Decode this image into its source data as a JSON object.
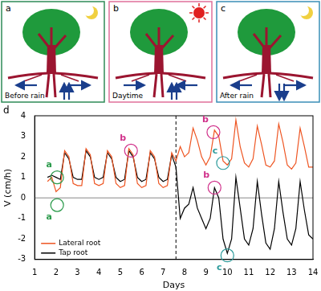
{
  "panels": [
    {
      "label": "a",
      "caption": "Before rain",
      "border_color": "#2e8b57"
    },
    {
      "label": "b",
      "caption": "Daytime",
      "border_color": "#e0709a"
    },
    {
      "label": "c",
      "caption": "After rain",
      "border_color": "#3a8fb7"
    }
  ],
  "chart_data": {
    "type": "line",
    "panel_label": "d",
    "x_label": "Days",
    "y_label": "V (cm/h)",
    "x": [
      1.6,
      1.8,
      2.0,
      2.2,
      2.4,
      2.6,
      2.8,
      3.0,
      3.2,
      3.4,
      3.6,
      3.8,
      4.0,
      4.2,
      4.4,
      4.6,
      4.8,
      5.0,
      5.2,
      5.4,
      5.6,
      5.8,
      6.0,
      6.2,
      6.4,
      6.6,
      6.8,
      7.0,
      7.2,
      7.4,
      7.6,
      7.8,
      8.0,
      8.2,
      8.4,
      8.6,
      8.8,
      9.0,
      9.2,
      9.4,
      9.6,
      9.8,
      10.0,
      10.2,
      10.4,
      10.6,
      10.8,
      11.0,
      11.2,
      11.4,
      11.6,
      11.8,
      12.0,
      12.2,
      12.4,
      12.6,
      12.8,
      13.0,
      13.2,
      13.4,
      13.6,
      13.8,
      14.0
    ],
    "series": [
      {
        "name": "Lateral root",
        "color": "#ee5522",
        "values": [
          0.8,
          1.0,
          0.3,
          0.5,
          2.3,
          2.0,
          0.7,
          0.6,
          0.6,
          2.4,
          2.1,
          0.7,
          0.6,
          0.7,
          2.3,
          2.0,
          0.7,
          0.5,
          0.6,
          2.4,
          2.1,
          0.7,
          0.5,
          0.6,
          2.3,
          2.0,
          0.7,
          0.5,
          0.6,
          2.2,
          1.8,
          2.5,
          2.0,
          2.2,
          3.4,
          2.8,
          2.0,
          1.6,
          2.0,
          3.3,
          3.0,
          1.8,
          1.6,
          1.9,
          3.8,
          2.5,
          1.7,
          1.5,
          1.9,
          3.5,
          2.6,
          1.6,
          1.5,
          1.8,
          3.6,
          2.7,
          1.6,
          1.4,
          1.7,
          3.4,
          2.5,
          1.5,
          1.5
        ]
      },
      {
        "name": "Tap root",
        "color": "#000000",
        "values": [
          1.0,
          1.1,
          1.0,
          0.9,
          2.2,
          1.9,
          1.0,
          0.9,
          0.9,
          2.3,
          2.0,
          1.0,
          0.9,
          1.0,
          2.2,
          1.9,
          1.0,
          0.8,
          0.9,
          2.3,
          2.0,
          1.0,
          0.8,
          0.9,
          2.2,
          1.9,
          1.0,
          0.8,
          0.9,
          2.1,
          1.5,
          -1.0,
          -0.5,
          -0.3,
          0.5,
          -0.5,
          -1.0,
          -1.5,
          -1.0,
          0.5,
          0.0,
          -2.0,
          -2.7,
          -2.0,
          1.0,
          -0.5,
          -2.0,
          -2.3,
          -1.5,
          0.8,
          -0.8,
          -2.2,
          -2.5,
          -1.5,
          0.8,
          -0.7,
          -2.0,
          -2.3,
          -1.5,
          0.8,
          -0.6,
          -1.8,
          -2.0
        ]
      }
    ],
    "xlim": [
      1,
      14
    ],
    "xticks": [
      1,
      2,
      3,
      4,
      5,
      6,
      7,
      8,
      9,
      10,
      11,
      12,
      13,
      14
    ],
    "ylim": [
      -3,
      4
    ],
    "yticks": [
      -3,
      -2,
      -1,
      0,
      1,
      2,
      3,
      4
    ],
    "grid": false,
    "legend": "lower left",
    "vlines": [
      {
        "x": 7.6,
        "line_style": "dashed"
      }
    ],
    "hlines": [
      {
        "y": 0
      }
    ],
    "annotations": [
      {
        "label": "a",
        "x": 2.05,
        "y": 1.0,
        "color": "#2a9a4a"
      },
      {
        "label": "a",
        "x": 2.05,
        "y": -0.35,
        "color": "#2a9a4a"
      },
      {
        "label": "b",
        "x": 5.5,
        "y": 2.3,
        "color": "#d0308a"
      },
      {
        "label": "b",
        "x": 9.35,
        "y": 3.2,
        "color": "#d0308a"
      },
      {
        "label": "b",
        "x": 9.4,
        "y": 0.5,
        "color": "#d0308a"
      },
      {
        "label": "c",
        "x": 9.8,
        "y": 1.7,
        "color": "#2a9a9a"
      },
      {
        "label": "c",
        "x": 10.0,
        "y": -2.8,
        "color": "#2a9a9a"
      }
    ]
  }
}
